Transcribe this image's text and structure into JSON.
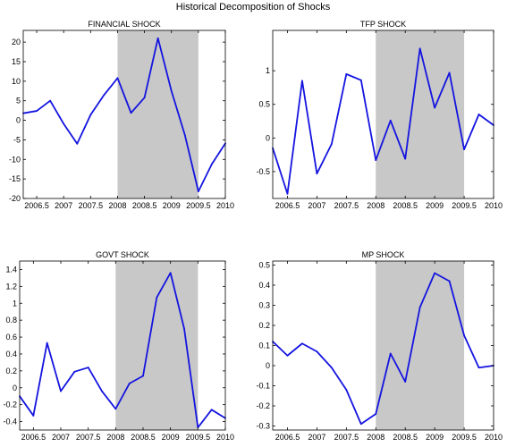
{
  "figure_title": "Historical Decomposition of Shocks",
  "colors": {
    "line": "#1414e0",
    "shade": "#c8c8c8",
    "axis": "#000000",
    "background": "#ffffff"
  },
  "chart_data": [
    {
      "type": "line",
      "title": "FINANCIAL SHOCK",
      "xlabel": "",
      "ylabel": "",
      "xlim": [
        2006.25,
        2010
      ],
      "ylim": [
        -20,
        23
      ],
      "xticks": [
        2006.5,
        2007,
        2007.5,
        2008,
        2008.5,
        2009,
        2009.5,
        2010
      ],
      "xtick_labels": [
        "2006.5",
        "2007",
        "2007.5",
        "2008",
        "2008.5",
        "2009",
        "2009.5",
        "2010"
      ],
      "yticks": [
        -20,
        -15,
        -10,
        -5,
        0,
        5,
        10,
        15,
        20
      ],
      "ytick_labels": [
        "-20",
        "-15",
        "-10",
        "-5",
        "0",
        "5",
        "10",
        "15",
        "20"
      ],
      "shaded_region": [
        2008,
        2009.5
      ],
      "grid": false,
      "x": [
        2006.25,
        2006.5,
        2006.75,
        2007,
        2007.25,
        2007.5,
        2007.75,
        2008,
        2008.25,
        2008.5,
        2008.75,
        2009,
        2009.25,
        2009.5,
        2009.75,
        2010
      ],
      "values": [
        1.8,
        2.4,
        5.0,
        -0.9,
        -6.0,
        1.4,
        6.5,
        10.8,
        1.9,
        5.8,
        21.0,
        7.5,
        -3.8,
        -18.2,
        -11.2,
        -5.9
      ]
    },
    {
      "type": "line",
      "title": "TFP SHOCK",
      "xlabel": "",
      "ylabel": "",
      "xlim": [
        2006.25,
        2010
      ],
      "ylim": [
        -0.9,
        1.6
      ],
      "xticks": [
        2006.5,
        2007,
        2007.5,
        2008,
        2008.5,
        2009,
        2009.5,
        2010
      ],
      "xtick_labels": [
        "2006.5",
        "2007",
        "2007.5",
        "2008",
        "2008.5",
        "2009",
        "2009.5",
        "2010"
      ],
      "yticks": [
        -0.5,
        0,
        0.5,
        1
      ],
      "ytick_labels": [
        "-0.5",
        "0",
        "0.5",
        "1"
      ],
      "shaded_region": [
        2008,
        2009.5
      ],
      "grid": false,
      "x": [
        2006.25,
        2006.5,
        2006.75,
        2007,
        2007.25,
        2007.5,
        2007.75,
        2008,
        2008.25,
        2008.5,
        2008.75,
        2009,
        2009.25,
        2009.5,
        2009.75,
        2010
      ],
      "values": [
        -0.15,
        -0.83,
        0.85,
        -0.53,
        -0.09,
        0.95,
        0.86,
        -0.33,
        0.26,
        -0.31,
        1.33,
        0.45,
        0.97,
        -0.17,
        0.35,
        0.19
      ]
    },
    {
      "type": "line",
      "title": "GOVT SHOCK",
      "xlabel": "",
      "ylabel": "",
      "xlim": [
        2006.25,
        2010
      ],
      "ylim": [
        -0.5,
        1.5
      ],
      "xticks": [
        2006.5,
        2007,
        2007.5,
        2008,
        2008.5,
        2009,
        2009.5,
        2010
      ],
      "xtick_labels": [
        "2006.5",
        "2007",
        "2007.5",
        "2008",
        "2008.5",
        "2009",
        "2009.5",
        "2010"
      ],
      "yticks": [
        -0.4,
        -0.2,
        0,
        0.2,
        0.4,
        0.6,
        0.8,
        1,
        1.2,
        1.4
      ],
      "ytick_labels": [
        "-0.4",
        "-0.2",
        "0",
        "0.2",
        "0.4",
        "0.6",
        "0.8",
        "1",
        "1.2",
        "1.4"
      ],
      "shaded_region": [
        2008,
        2009.5
      ],
      "grid": false,
      "x": [
        2006.25,
        2006.5,
        2006.75,
        2007,
        2007.25,
        2007.5,
        2007.75,
        2008,
        2008.25,
        2008.5,
        2008.75,
        2009,
        2009.25,
        2009.5,
        2009.75,
        2010
      ],
      "values": [
        -0.1,
        -0.33,
        0.53,
        -0.04,
        0.19,
        0.24,
        -0.04,
        -0.25,
        0.05,
        0.14,
        1.07,
        1.36,
        0.7,
        -0.47,
        -0.26,
        -0.36
      ]
    },
    {
      "type": "line",
      "title": "MP SHOCK",
      "xlabel": "",
      "ylabel": "",
      "xlim": [
        2006.25,
        2010
      ],
      "ylim": [
        -0.32,
        0.52
      ],
      "xticks": [
        2006.5,
        2007,
        2007.5,
        2008,
        2008.5,
        2009,
        2009.5,
        2010
      ],
      "xtick_labels": [
        "2006.5",
        "2007",
        "2007.5",
        "2008",
        "2008.5",
        "2009",
        "2009.5",
        "2010"
      ],
      "yticks": [
        -0.3,
        -0.2,
        -0.1,
        0,
        0.1,
        0.2,
        0.3,
        0.4,
        0.5
      ],
      "ytick_labels": [
        "-0.3",
        "-0.2",
        "-0.1",
        "0",
        "0.1",
        "0.2",
        "0.3",
        "0.4",
        "0.5"
      ],
      "shaded_region": [
        2008,
        2009.5
      ],
      "grid": false,
      "x": [
        2006.25,
        2006.5,
        2006.75,
        2007,
        2007.25,
        2007.5,
        2007.75,
        2008,
        2008.25,
        2008.5,
        2008.75,
        2009,
        2009.25,
        2009.5,
        2009.75,
        2010
      ],
      "values": [
        0.12,
        0.05,
        0.11,
        0.07,
        -0.01,
        -0.12,
        -0.29,
        -0.24,
        0.06,
        -0.08,
        0.29,
        0.46,
        0.42,
        0.15,
        -0.01,
        0.0
      ]
    }
  ]
}
